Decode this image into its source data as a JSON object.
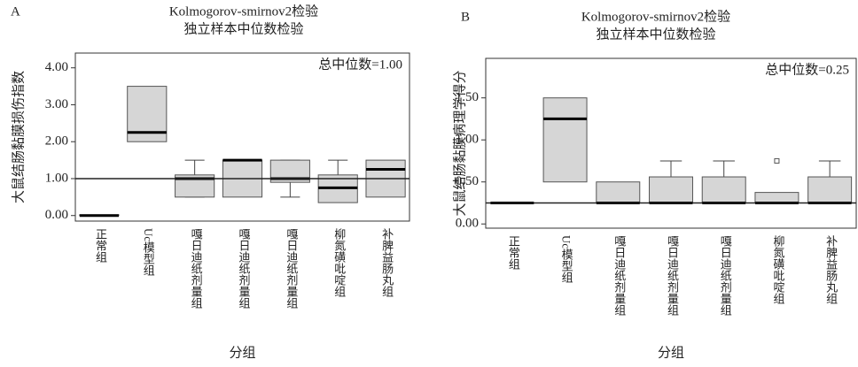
{
  "chart_data": [
    {
      "type": "box",
      "panel": "A",
      "title": "Kolmogorov-smirnov2检验",
      "subtitle": "独立样本中位数检验",
      "y_label": "大鼠结肠黏膜损伤指数",
      "x_label": "分组",
      "annotation": "总中位数=1.00",
      "reference_line": 1,
      "categories": [
        "正常组",
        "Uc模型组",
        "嘎日迪纸剂量组",
        "嘎日迪纸剂量组",
        "嘎日迪纸剂量组",
        "柳氮磺吡啶组",
        "补脾益肠丸组"
      ],
      "boxes": [
        {
          "q1": 0,
          "median": 0,
          "q3": 0.02
        },
        {
          "q1": 2,
          "median": 2.25,
          "q3": 3.5
        },
        {
          "min": 0.5,
          "q1": 0.5,
          "median": 1,
          "q3": 1.1,
          "max": 1.5
        },
        {
          "q1": 0.5,
          "median": 1.5,
          "q3": 1.5
        },
        {
          "min": 0.5,
          "q1": 0.9,
          "median": 1,
          "q3": 1.5,
          "max": 1.5
        },
        {
          "q1": 0.35,
          "median": 0.75,
          "q3": 1.1,
          "max": 1.5
        },
        {
          "q1": 0.5,
          "median": 1.25,
          "q3": 1.5
        }
      ],
      "color": "#d6d6d6",
      "ylim": [
        -0.15,
        4.4
      ],
      "yticks": [
        {
          "value": 0,
          "label": "0.00"
        },
        {
          "value": 1,
          "label": "1.00"
        },
        {
          "value": 2,
          "label": "2.00"
        },
        {
          "value": 3,
          "label": "3.00"
        },
        {
          "value": 4,
          "label": "4.00"
        }
      ]
    },
    {
      "type": "box",
      "panel": "B",
      "title": "Kolmogorov-smirnov2检验",
      "subtitle": "独立样本中位数检验",
      "y_label": "大鼠结肠黏膜病理学得分",
      "x_label": "分组",
      "annotation": "总中位数=0.25",
      "reference_line": 0.25,
      "categories": [
        "正常组",
        "Uc模型组",
        "嘎日迪纸剂量组",
        "嘎日迪纸剂量组",
        "嘎日迪纸剂量组",
        "柳氮磺吡啶组",
        "补脾益肠丸组"
      ],
      "boxes": [
        {
          "q1": 0.25,
          "median": 0.25,
          "q3": 0.25
        },
        {
          "q1": 0.5,
          "median": 1.25,
          "q3": 1.5
        },
        {
          "q1": 0.25,
          "median": 0.25,
          "q3": 0.5
        },
        {
          "q1": 0.25,
          "median": 0.25,
          "q3": 0.56,
          "max": 0.75
        },
        {
          "q1": 0.25,
          "median": 0.25,
          "q3": 0.56,
          "max": 0.75
        },
        {
          "q1": 0.25,
          "median": 0.25,
          "q3": 0.375,
          "outliers": [
            0.75
          ]
        },
        {
          "q1": 0.25,
          "median": 0.25,
          "q3": 0.56,
          "max": 0.75
        }
      ],
      "color": "#d6d6d6",
      "ylim": [
        -0.05,
        1.97
      ],
      "yticks": [
        {
          "value": 0,
          "label": "0.00"
        },
        {
          "value": 0.5,
          "label": "0.50"
        },
        {
          "value": 1,
          "label": "1.00"
        },
        {
          "value": 1.5,
          "label": "1.50"
        }
      ]
    }
  ]
}
